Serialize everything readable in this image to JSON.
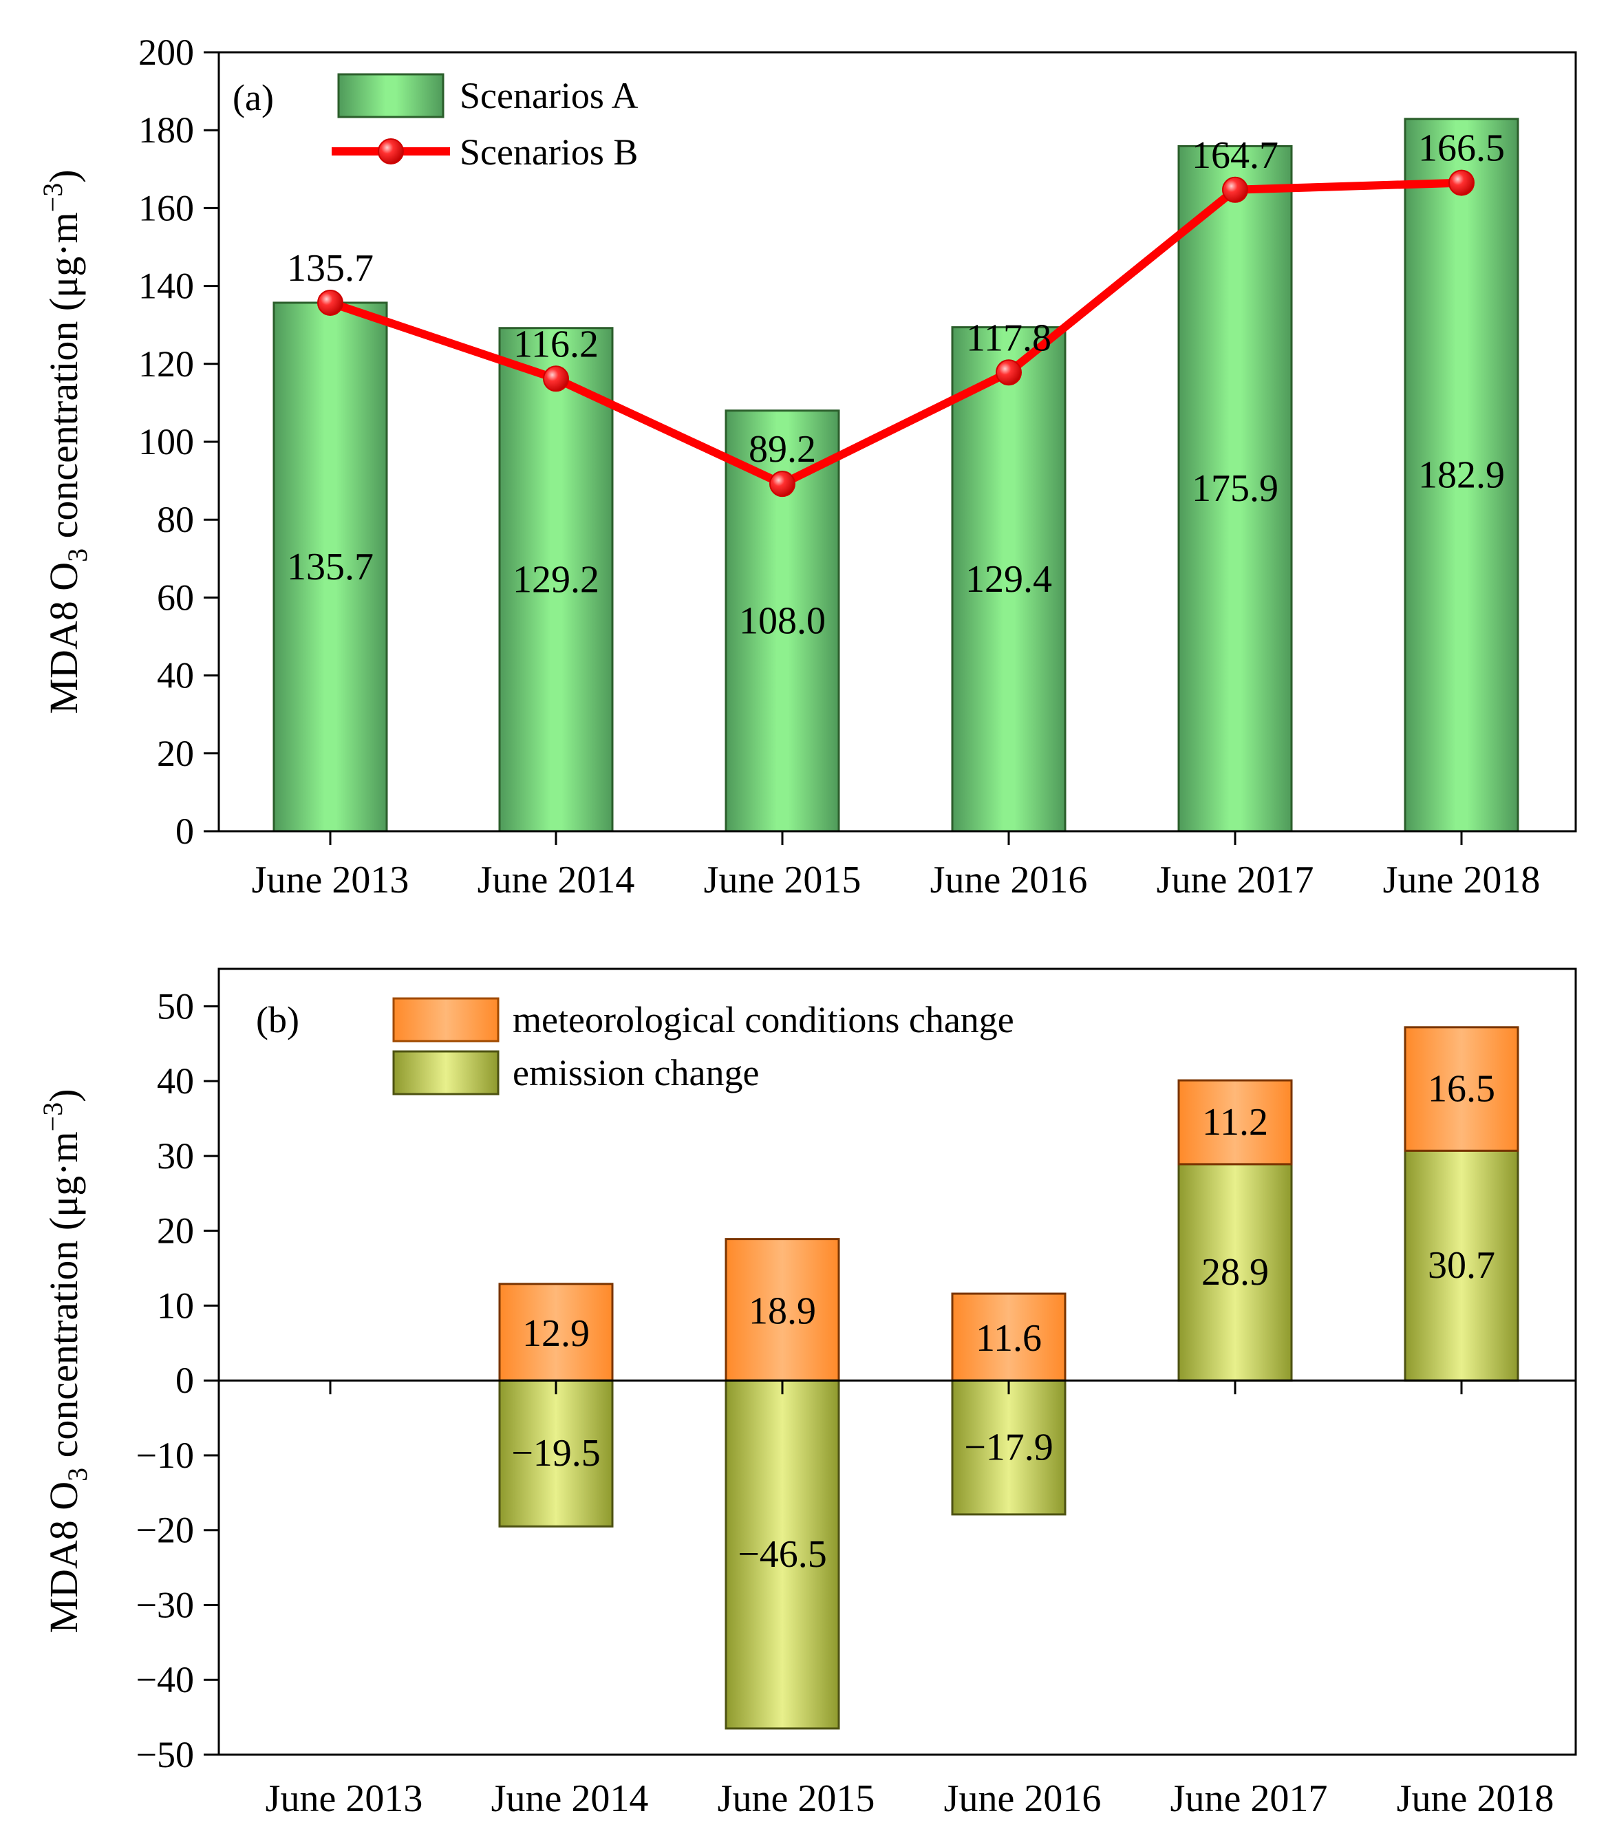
{
  "chart_data": [
    {
      "panel": "a",
      "type": "bar+line",
      "panel_label": "(a)",
      "categories": [
        "June 2013",
        "June 2014",
        "June 2015",
        "June 2016",
        "June 2017",
        "June 2018"
      ],
      "ylabel": {
        "main": "MDA8 O",
        "sub": "3",
        "mid": " concentration (μg·m",
        "sup": "−3",
        "end": ")"
      },
      "ylim": [
        0,
        200
      ],
      "yticks": [
        0,
        20,
        40,
        60,
        80,
        100,
        120,
        140,
        160,
        180,
        200
      ],
      "ytick_labels": [
        "0",
        "20",
        "40",
        "60",
        "80",
        "100",
        "120",
        "140",
        "160",
        "180",
        "200"
      ],
      "series": [
        {
          "name": "Scenarios A",
          "kind": "bar",
          "values": [
            135.7,
            129.2,
            108.0,
            129.4,
            175.9,
            182.9
          ],
          "labels": [
            "135.7",
            "129.2",
            "108.0",
            "129.4",
            "175.9",
            "182.9"
          ]
        },
        {
          "name": "Scenarios B",
          "kind": "line",
          "values": [
            135.7,
            116.2,
            89.2,
            117.8,
            164.7,
            166.5
          ],
          "labels": [
            "135.7",
            "116.2",
            "89.2",
            "117.8",
            "164.7",
            "166.5"
          ]
        }
      ],
      "colors": {
        "bar": "#8ef08e",
        "bar_dark": "#4f9a5a",
        "line": "#ff0000"
      },
      "legend": "top-left"
    },
    {
      "panel": "b",
      "type": "stacked-bar",
      "panel_label": "(b)",
      "categories": [
        "June 2013",
        "June 2014",
        "June 2015",
        "June 2016",
        "June 2017",
        "June 2018"
      ],
      "ylabel": {
        "main": "MDA8 O",
        "sub": "3",
        "mid": " concentration (μg·m",
        "sup": "−3",
        "end": ")"
      },
      "ylim": [
        -50,
        55
      ],
      "yticks": [
        -50,
        -40,
        -30,
        -20,
        -10,
        0,
        10,
        20,
        30,
        40,
        50
      ],
      "ytick_labels": [
        "−50",
        "−40",
        "−30",
        "−20",
        "−10",
        "0",
        "10",
        "20",
        "30",
        "40",
        "50"
      ],
      "series": [
        {
          "name": "meteorological conditions change",
          "values": [
            null,
            12.9,
            18.9,
            11.6,
            11.2,
            16.5
          ],
          "labels": [
            "",
            "12.9",
            "18.9",
            "11.6",
            "11.2",
            "16.5"
          ]
        },
        {
          "name": "emission change",
          "values": [
            null,
            -19.5,
            -46.5,
            -17.9,
            28.9,
            30.7
          ],
          "labels": [
            "",
            "−19.5",
            "−46.5",
            "−17.9",
            "28.9",
            "30.7"
          ]
        }
      ],
      "colors": {
        "met": "#ffb070",
        "met_dark": "#ff8a2a",
        "emis": "#e6ee8a",
        "emis_dark": "#8f9a2e"
      },
      "legend": "top-left"
    }
  ]
}
